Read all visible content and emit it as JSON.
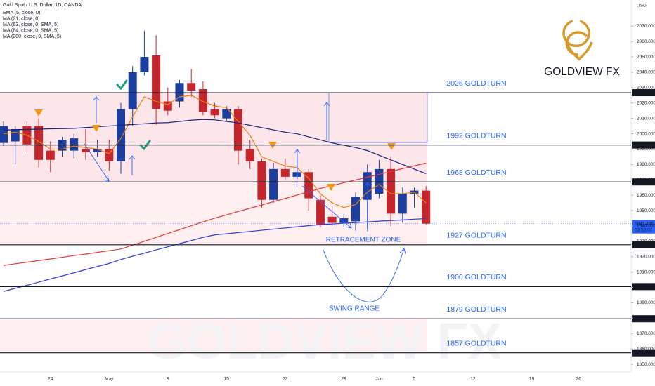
{
  "chart_data": {
    "type": "candlestick",
    "title": "Gold Spot / U.S. Dollar, 1D, OANDA",
    "currency": "USD",
    "logo": "GOLDVIEW FX",
    "watermark": "GOLDVIEW FX",
    "ylim": [
      1845,
      2087
    ],
    "yticks": [
      {
        "value": 1850,
        "label": "1850.000"
      },
      {
        "value": 1860,
        "label": "1860.000"
      },
      {
        "value": 1870,
        "label": "1870.000"
      },
      {
        "value": 1880,
        "label": "1880.000"
      },
      {
        "value": 1890,
        "label": "1890.000"
      },
      {
        "value": 1900,
        "label": "1900.000"
      },
      {
        "value": 1910,
        "label": "1910.000"
      },
      {
        "value": 1920,
        "label": "1920.000"
      },
      {
        "value": 1930,
        "label": "1930.000"
      },
      {
        "value": 1940,
        "label": "1940.000"
      },
      {
        "value": 1950,
        "label": "1950.000"
      },
      {
        "value": 1960,
        "label": "1960.000"
      },
      {
        "value": 1970,
        "label": "1970.000"
      },
      {
        "value": 1980,
        "label": "1980.000"
      },
      {
        "value": 1990,
        "label": "1990.000"
      },
      {
        "value": 2000,
        "label": "2000.000"
      },
      {
        "value": 2010,
        "label": "2010.000"
      },
      {
        "value": 2020,
        "label": "2020.000"
      },
      {
        "value": 2030,
        "label": "2030.000"
      },
      {
        "value": 2040,
        "label": "2040.000"
      },
      {
        "value": 2050,
        "label": "2050.000"
      },
      {
        "value": 2060,
        "label": "2060.000"
      },
      {
        "value": 2070,
        "label": "2070.000"
      }
    ],
    "grid": false,
    "up_color": "#1c3f9f",
    "down_color": "#c3262c",
    "categories": [
      null,
      null,
      null,
      null,
      "24",
      null,
      null,
      null,
      null,
      "May",
      null,
      null,
      null,
      null,
      "8",
      null,
      null,
      null,
      null,
      "15",
      null,
      null,
      null,
      null,
      "22",
      null,
      null,
      null,
      null,
      "29",
      null,
      null,
      "Jun",
      null,
      null,
      "5",
      null,
      null,
      null,
      null,
      "12",
      null,
      null,
      null,
      null,
      "19",
      null,
      null,
      null,
      "26",
      null,
      null,
      null,
      null
    ],
    "open": [
      1994,
      1995,
      2005,
      2005,
      1989,
      1989,
      1989,
      1990,
      1988,
      1990,
      1982,
      2016,
      2040,
      2051,
      2021,
      2021,
      2033,
      2029,
      2016,
      2010,
      2016,
      1990,
      1982,
      1957,
      1977,
      1972,
      1975,
      1957,
      1946,
      1942,
      1943,
      1957,
      1961,
      1977,
      1948,
      1961,
      1963,
      null,
      null,
      null,
      null,
      null,
      null,
      null,
      null,
      null,
      null,
      null,
      null,
      null,
      null,
      null,
      null,
      null
    ],
    "high": [
      2008,
      2005,
      2008,
      2010,
      1995,
      1998,
      2000,
      2003,
      1996,
      1996,
      2020,
      2044,
      2067,
      2064,
      2030,
      2035,
      2042,
      2034,
      2020,
      2018,
      2018,
      1996,
      1984,
      1981,
      1984,
      1985,
      1977,
      1960,
      1953,
      1948,
      1962,
      1980,
      1983,
      1985,
      1965,
      1965,
      1966,
      null,
      null,
      null,
      null,
      null,
      null,
      null,
      null,
      null,
      null,
      null,
      null,
      null,
      null,
      null,
      null,
      null
    ],
    "low": [
      1992,
      1980,
      1988,
      1978,
      1975,
      1985,
      1984,
      1983,
      1985,
      1976,
      1974,
      2005,
      2038,
      2006,
      2012,
      2017,
      2024,
      2012,
      2010,
      2008,
      1980,
      1977,
      1952,
      1955,
      1970,
      1965,
      1950,
      1939,
      1940,
      1939,
      1937,
      1938,
      1958,
      1940,
      1942,
      1952,
      1941,
      null,
      null,
      null,
      null,
      null,
      null,
      null,
      null,
      null,
      null,
      null,
      null,
      null,
      null,
      null,
      null,
      null
    ],
    "close": [
      2005,
      2003,
      1993,
      1983,
      1983,
      1996,
      1997,
      1988,
      1990,
      1982,
      2016,
      2040,
      2050,
      2016,
      2015,
      2033,
      2028,
      2014,
      2012,
      2016,
      1989,
      1982,
      1957,
      1977,
      1972,
      1975,
      1958,
      1941,
      1942,
      1945,
      1959,
      1975,
      1977,
      1948,
      1961,
      1963,
      1941.485,
      null,
      null,
      null,
      null,
      null,
      null,
      null,
      null,
      null,
      null,
      null,
      null,
      null,
      null,
      null,
      null,
      null
    ],
    "series": [
      {
        "name": "EMA (5, close, 0)",
        "color": "#ef7d12",
        "values": [
          2000,
          2001,
          1999,
          1995,
          1990,
          1990,
          1992,
          1991,
          1990,
          1987,
          1997,
          2011,
          2024,
          2021,
          2019,
          2024,
          2025,
          2021,
          2018,
          2017,
          2008,
          1999,
          1985,
          1982,
          1979,
          1978,
          1971,
          1961,
          1955,
          1952,
          1954,
          1962,
          1967,
          1961,
          1961,
          1962,
          1955,
          null,
          null,
          null,
          null,
          null,
          null,
          null,
          null,
          null,
          null,
          null,
          null,
          null,
          null,
          null,
          null,
          null
        ]
      },
      {
        "name": "MA (21, close, 0)",
        "color": "#1a237e",
        "values": [
          2002.4,
          2002.6,
          2002.8,
          2003,
          2003.2,
          2003.3,
          2003.5,
          2004,
          2004.5,
          2005,
          2005.5,
          2006,
          2006.5,
          2007,
          2007.2,
          2008,
          2008.8,
          2009.3,
          2009,
          2008,
          2007,
          2005.5,
          2004,
          2002.5,
          2001,
          2000,
          1998,
          1996,
          1994,
          1992.5,
          1991,
          1989,
          1986,
          1983,
          1980,
          1977,
          1974,
          null,
          null,
          null,
          null,
          null,
          null,
          null,
          null,
          null,
          null,
          null,
          null,
          null,
          null,
          null,
          null,
          null
        ]
      },
      {
        "name": "MA (63, close, 0, SMA, 5)",
        "color": "#e53935",
        "values": [
          1914.3,
          1915.4,
          1916.4,
          1917.5,
          1918.5,
          1919.6,
          1920.7,
          1921.7,
          1922.8,
          1923.9,
          1925,
          1927.5,
          1930,
          1932.6,
          1935.1,
          1937.6,
          1940.1,
          1942.7,
          1945.1,
          1947.2,
          1949.4,
          1951.5,
          1953.6,
          1955.8,
          1957.9,
          1960.1,
          1962.2,
          1964.4,
          1966.2,
          1968.1,
          1969.9,
          1971.7,
          1973.6,
          1975.4,
          1977.3,
          1979.1,
          1980.9,
          null,
          null,
          null,
          null,
          null,
          null,
          null,
          null,
          null,
          null,
          null,
          null,
          null,
          null,
          null,
          null,
          null
        ]
      },
      {
        "name": "MA (84, close, 0, SMA, 5)",
        "color": "#2b3ed6",
        "values": [
          1897.4,
          1899.4,
          1901.4,
          1903.4,
          1905.5,
          1907.5,
          1909.5,
          1911.6,
          1913.6,
          1915.6,
          1918.2,
          1920.3,
          1922.3,
          1924.4,
          1926.4,
          1928.5,
          1930.5,
          1932.6,
          1934.2,
          1934.9,
          1935.7,
          1936.4,
          1937.2,
          1937.9,
          1938.7,
          1939.4,
          1940.2,
          1940.9,
          1941.3,
          1941.8,
          1942.2,
          1942.6,
          1943.1,
          1943.5,
          1943.9,
          1944.4,
          1944.8,
          null,
          null,
          null,
          null,
          null,
          null,
          null,
          null,
          null,
          null,
          null,
          null,
          null,
          null,
          null,
          null,
          null
        ]
      },
      {
        "name": "MA (200, close, 0, SMA, 5)",
        "color": "#7b1fa2",
        "values": [
          null,
          null,
          null,
          null,
          null,
          null,
          null,
          null,
          null,
          null,
          null,
          null,
          null,
          null,
          null,
          null,
          null,
          null,
          null,
          null,
          null,
          null,
          null,
          null,
          null,
          null,
          null,
          null,
          null,
          null,
          null,
          null,
          null,
          null,
          null,
          null,
          null,
          null,
          null,
          null,
          null,
          null,
          null,
          null,
          null,
          null,
          null,
          null,
          null,
          null,
          null,
          null,
          null,
          null
        ]
      }
    ],
    "levels": [
      {
        "value": 2026.706,
        "label": "2026 GOLDTURN"
      },
      {
        "value": 1992.656,
        "label": "1992 GOLDTURN"
      },
      {
        "value": 1968.638,
        "label": "1968 GOLDTURN"
      },
      {
        "value": 1927.726,
        "label": "1927 GOLDTURN"
      },
      {
        "value": 1900.541,
        "label": "1900 GOLDTURN"
      },
      {
        "value": 1879.612,
        "label": "1879 GOLDTURN"
      },
      {
        "value": 1857.461,
        "label": "1857 GOLDTURN"
      }
    ],
    "last_price": 1941.485,
    "countdown": "03:53:07",
    "annotations": [
      "RETRACEMENT ZONE",
      "SWING RANGE"
    ]
  }
}
